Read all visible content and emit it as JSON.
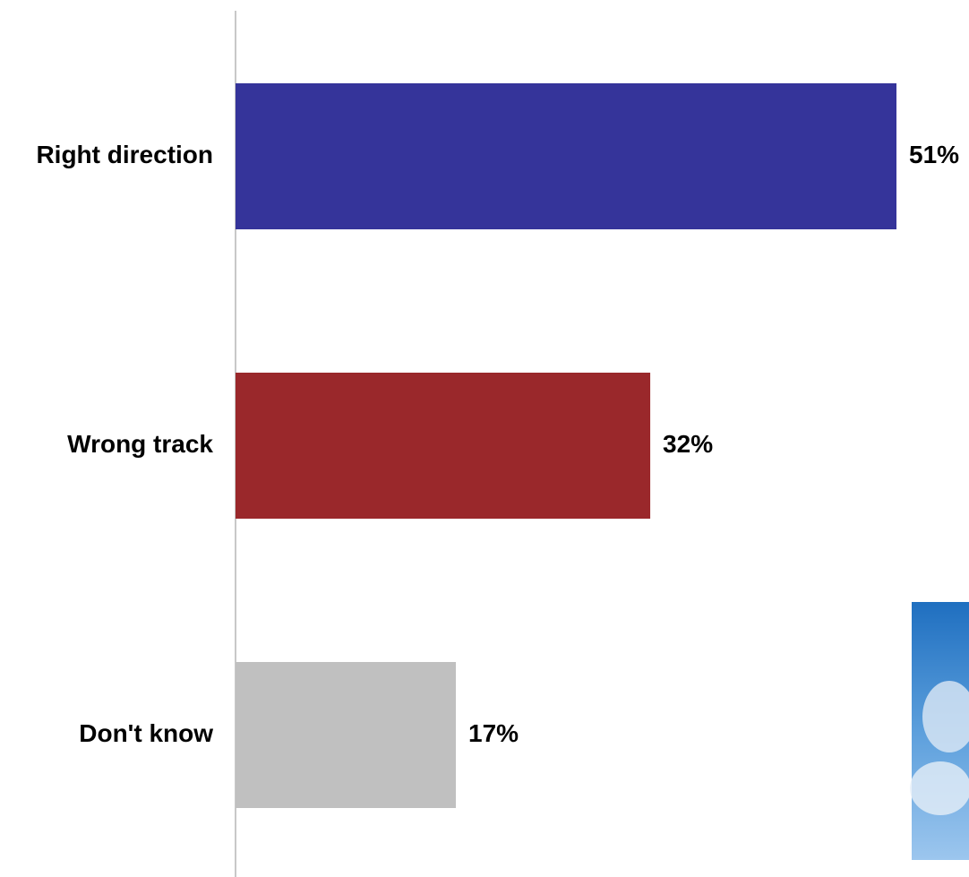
{
  "chart_data": {
    "type": "hbar",
    "categories": [
      "Right direction",
      "Wrong track",
      "Don't know"
    ],
    "values": [
      51,
      32,
      17
    ],
    "value_labels": [
      "51%",
      "32%",
      "17%"
    ],
    "colors": [
      "#35349a",
      "#9a282b",
      "#c0c0c0"
    ]
  }
}
